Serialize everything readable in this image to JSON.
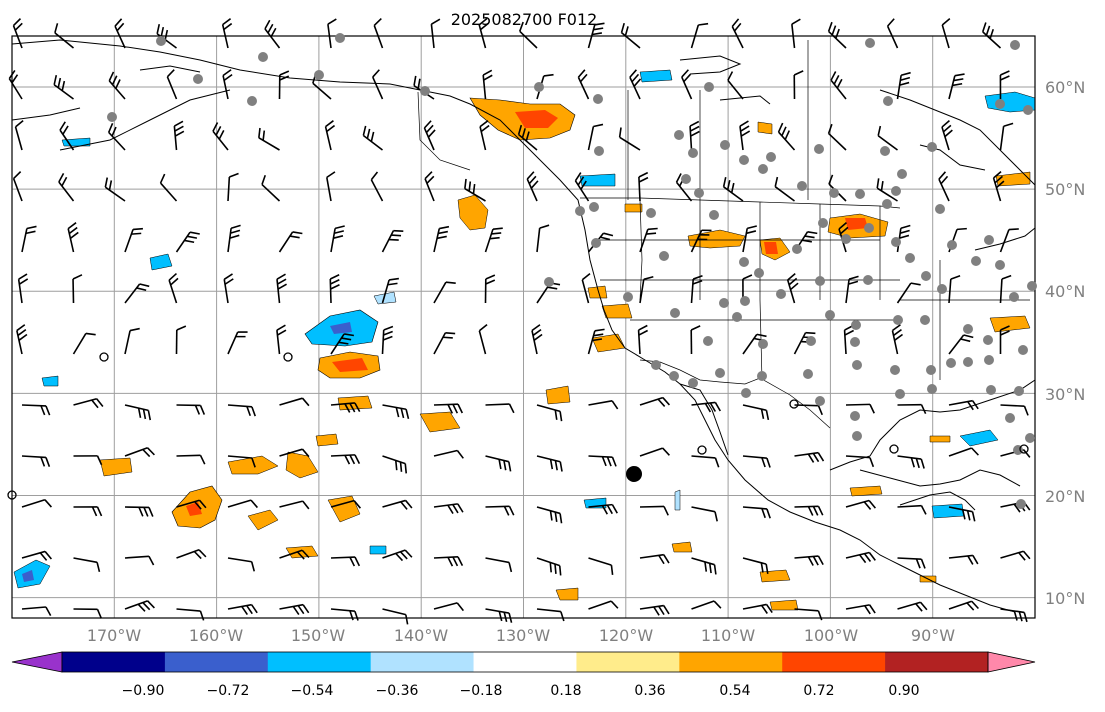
{
  "title": "2025082700 F012",
  "map": {
    "lon_range": [
      -180,
      -80
    ],
    "lat_range": [
      8,
      65
    ],
    "grid_lons": [
      -170,
      -160,
      -150,
      -140,
      -130,
      -120,
      -110,
      -100,
      -90
    ],
    "grid_lats": [
      10,
      20,
      30,
      40,
      50,
      60
    ],
    "gridline_color": "#9e9e9e"
  },
  "lat_labels": [
    "10°N",
    "20°N",
    "30°N",
    "40°N",
    "50°N",
    "60°N"
  ],
  "lon_labels": [
    "170°W",
    "160°W",
    "150°W",
    "140°W",
    "130°W",
    "120°W",
    "110°W",
    "100°W",
    "90°W"
  ],
  "colorbar": {
    "ticks": [
      "−0.90",
      "−0.72",
      "−0.54",
      "−0.36",
      "−0.18",
      "0.18",
      "0.36",
      "0.54",
      "0.72",
      "0.90"
    ],
    "levels": [
      -0.9,
      -0.72,
      -0.54,
      -0.36,
      -0.18,
      0.18,
      0.36,
      0.54,
      0.72,
      0.9
    ],
    "under_color": "#9932cc",
    "over_color": "#ff88aa",
    "colors": [
      "#00008b",
      "#3a5fcd",
      "#00bfff",
      "#b0e2ff",
      "#ffffff",
      "#ffec8b",
      "#ffa500",
      "#ff4500",
      "#b22222"
    ]
  },
  "legend_items": {
    "filled_circle_color": "#808080",
    "large_marker_color": "#000000"
  }
}
